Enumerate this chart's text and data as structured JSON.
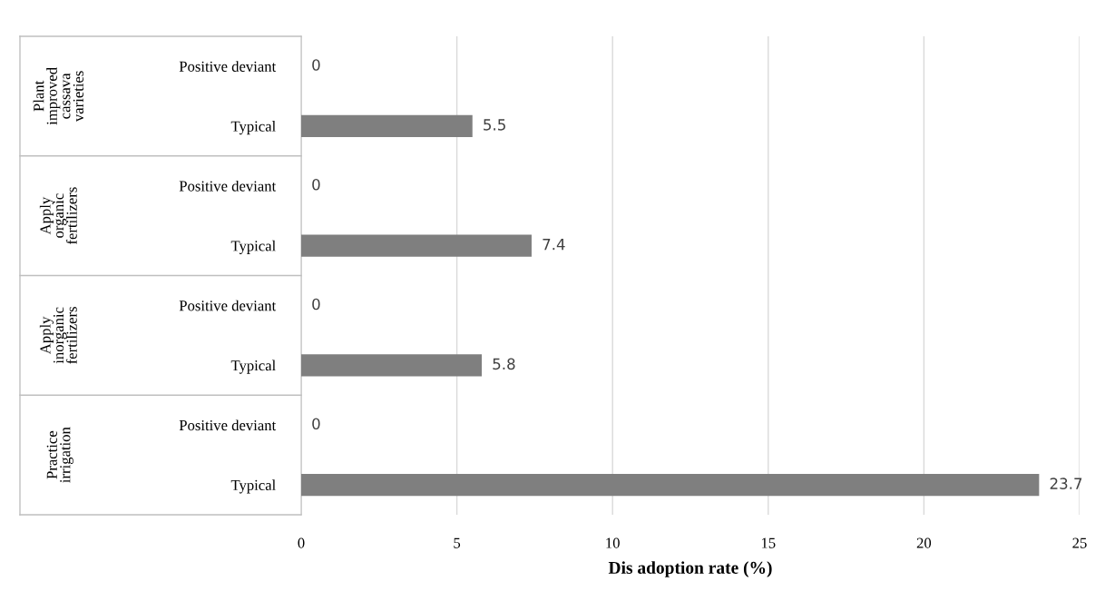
{
  "chart_data": {
    "type": "bar",
    "orientation": "horizontal",
    "categories": [
      "Positive deviant",
      "Typical",
      "Positive deviant",
      "Typical",
      "Positive deviant",
      "Typical",
      "Positive deviant",
      "Typical"
    ],
    "values": [
      0,
      5.5,
      0,
      7.4,
      0,
      5.8,
      0,
      23.7
    ],
    "color": "#7f7f7f",
    "xlabel": "Dis adoption rate (%)",
    "xlim": [
      0,
      25
    ],
    "xticks": [
      0,
      5,
      10,
      15,
      20,
      25
    ],
    "grid": "x",
    "data_labels": true,
    "annotations": [
      "Plant\nimproved\ncassava\nvarieties",
      "Apply\norganic\nfertilizers",
      "Apply\ninorganic\nfertilizers",
      "Practice\nirrigation"
    ]
  }
}
